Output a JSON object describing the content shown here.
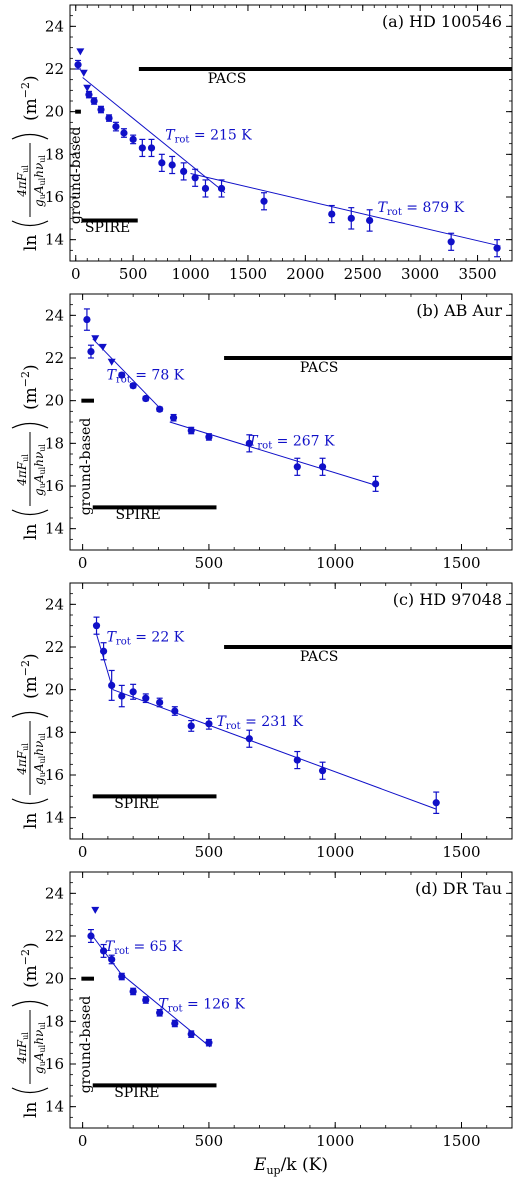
{
  "chart_data": [
    {
      "type": "scatter",
      "title": "(a) HD 100546",
      "xlim": [
        -50,
        3800
      ],
      "ylim": [
        13,
        25
      ],
      "xticks": [
        0,
        500,
        1000,
        1500,
        2000,
        2500,
        3000,
        3500
      ],
      "yticks": [
        14,
        16,
        18,
        20,
        22,
        24
      ],
      "detections": [
        {
          "x": 20,
          "y": 22.2,
          "yerr": 0.2
        },
        {
          "x": 115,
          "y": 20.8,
          "yerr": 0.15
        },
        {
          "x": 160,
          "y": 20.5,
          "yerr": 0.15
        },
        {
          "x": 220,
          "y": 20.1,
          "yerr": 0.15
        },
        {
          "x": 290,
          "y": 19.7,
          "yerr": 0.15
        },
        {
          "x": 350,
          "y": 19.3,
          "yerr": 0.2
        },
        {
          "x": 420,
          "y": 19.0,
          "yerr": 0.2
        },
        {
          "x": 500,
          "y": 18.7,
          "yerr": 0.2
        },
        {
          "x": 580,
          "y": 18.3,
          "yerr": 0.4
        },
        {
          "x": 660,
          "y": 18.3,
          "yerr": 0.4
        },
        {
          "x": 750,
          "y": 17.6,
          "yerr": 0.4
        },
        {
          "x": 840,
          "y": 17.5,
          "yerr": 0.4
        },
        {
          "x": 940,
          "y": 17.2,
          "yerr": 0.4
        },
        {
          "x": 1040,
          "y": 16.9,
          "yerr": 0.4
        },
        {
          "x": 1130,
          "y": 16.4,
          "yerr": 0.4
        },
        {
          "x": 1270,
          "y": 16.4,
          "yerr": 0.4
        },
        {
          "x": 1640,
          "y": 15.8,
          "yerr": 0.4
        },
        {
          "x": 2230,
          "y": 15.2,
          "yerr": 0.4
        },
        {
          "x": 2400,
          "y": 15.0,
          "yerr": 0.5
        },
        {
          "x": 2560,
          "y": 14.9,
          "yerr": 0.5
        },
        {
          "x": 3270,
          "y": 13.9,
          "yerr": 0.4
        },
        {
          "x": 3670,
          "y": 13.6,
          "yerr": 0.4
        }
      ],
      "upper_limits": [
        {
          "x": 40,
          "y": 22.8
        },
        {
          "x": 70,
          "y": 21.8
        },
        {
          "x": 100,
          "y": 21.1
        }
      ],
      "fits": [
        {
          "label_main": "T",
          "label_sub": "rot",
          "label_rest": " = 215 K",
          "x0": 60,
          "y0": 21.6,
          "x1": 1300,
          "y1": 16.2,
          "lx": 780,
          "ly": 18.7
        },
        {
          "label_main": "T",
          "label_sub": "rot",
          "label_rest": " = 879 K",
          "x0": 1000,
          "y0": 17.1,
          "x1": 3700,
          "y1": 13.7,
          "lx": 2630,
          "ly": 15.3
        }
      ],
      "bands": [
        {
          "label": "PACS",
          "x0": 550,
          "x1": 3800,
          "y": 22.0,
          "lx": 1150,
          "ly": 21.35
        },
        {
          "label": "SPIRE",
          "x0": 50,
          "x1": 540,
          "y": 14.9,
          "lx": 80,
          "ly": 14.35
        },
        {
          "label": "ground-based",
          "x0": -5,
          "x1": 45,
          "y": 20.0,
          "vertical": true,
          "lx": 10,
          "ly": 19.3
        }
      ]
    },
    {
      "type": "scatter",
      "title": "(b) AB Aur",
      "xlim": [
        -50,
        1700
      ],
      "ylim": [
        13,
        25
      ],
      "xticks": [
        0,
        500,
        1000,
        1500
      ],
      "yticks": [
        14,
        16,
        18,
        20,
        22,
        24
      ],
      "detections": [
        {
          "x": 17,
          "y": 23.8,
          "yerr": 0.5
        },
        {
          "x": 33,
          "y": 22.3,
          "yerr": 0.3
        },
        {
          "x": 155,
          "y": 21.2,
          "yerr": 0.1
        },
        {
          "x": 200,
          "y": 20.7,
          "yerr": 0.1
        },
        {
          "x": 250,
          "y": 20.1,
          "yerr": 0.1
        },
        {
          "x": 305,
          "y": 19.6,
          "yerr": 0.1
        },
        {
          "x": 360,
          "y": 19.2,
          "yerr": 0.15
        },
        {
          "x": 430,
          "y": 18.6,
          "yerr": 0.15
        },
        {
          "x": 500,
          "y": 18.3,
          "yerr": 0.15
        },
        {
          "x": 660,
          "y": 18.0,
          "yerr": 0.4
        },
        {
          "x": 850,
          "y": 16.9,
          "yerr": 0.4
        },
        {
          "x": 950,
          "y": 16.9,
          "yerr": 0.4
        },
        {
          "x": 1160,
          "y": 16.1,
          "yerr": 0.35
        }
      ],
      "upper_limits": [
        {
          "x": 50,
          "y": 22.9
        },
        {
          "x": 80,
          "y": 22.5
        },
        {
          "x": 115,
          "y": 21.8
        }
      ],
      "fits": [
        {
          "label_main": "T",
          "label_sub": "rot",
          "label_rest": " = 78 K",
          "x0": 40,
          "y0": 22.9,
          "x1": 310,
          "y1": 19.6,
          "lx": 95,
          "ly": 21.0
        },
        {
          "label_main": "T",
          "label_sub": "rot",
          "label_rest": " = 267 K",
          "x0": 345,
          "y0": 19.0,
          "x1": 1170,
          "y1": 16.0,
          "lx": 655,
          "ly": 17.9
        }
      ],
      "bands": [
        {
          "label": "PACS",
          "x0": 560,
          "x1": 1700,
          "y": 22.0,
          "lx": 860,
          "ly": 21.35
        },
        {
          "label": "SPIRE",
          "x0": 40,
          "x1": 530,
          "y": 15.0,
          "lx": 130,
          "ly": 14.45
        },
        {
          "label": "ground-based",
          "x0": -5,
          "x1": 45,
          "y": 20.0,
          "vertical": true,
          "lx": 18,
          "ly": 19.2
        }
      ]
    },
    {
      "type": "scatter",
      "title": "(c) HD 97048",
      "xlim": [
        -50,
        1700
      ],
      "ylim": [
        13,
        25
      ],
      "xticks": [
        0,
        500,
        1000,
        1500
      ],
      "yticks": [
        14,
        16,
        18,
        20,
        22,
        24
      ],
      "detections": [
        {
          "x": 55,
          "y": 23.0,
          "yerr": 0.4
        },
        {
          "x": 83,
          "y": 21.8,
          "yerr": 0.4
        },
        {
          "x": 115,
          "y": 20.2,
          "yerr": 0.7
        },
        {
          "x": 155,
          "y": 19.7,
          "yerr": 0.5
        },
        {
          "x": 200,
          "y": 19.9,
          "yerr": 0.35
        },
        {
          "x": 250,
          "y": 19.6,
          "yerr": 0.2
        },
        {
          "x": 305,
          "y": 19.4,
          "yerr": 0.2
        },
        {
          "x": 365,
          "y": 19.0,
          "yerr": 0.2
        },
        {
          "x": 430,
          "y": 18.3,
          "yerr": 0.25
        },
        {
          "x": 500,
          "y": 18.4,
          "yerr": 0.25
        },
        {
          "x": 660,
          "y": 17.7,
          "yerr": 0.4
        },
        {
          "x": 850,
          "y": 16.7,
          "yerr": 0.4
        },
        {
          "x": 950,
          "y": 16.2,
          "yerr": 0.4
        },
        {
          "x": 1400,
          "y": 14.7,
          "yerr": 0.5
        }
      ],
      "upper_limits": [],
      "fits": [
        {
          "label_main": "T",
          "label_sub": "rot",
          "label_rest": " = 22 K",
          "x0": 55,
          "y0": 22.6,
          "x1": 120,
          "y1": 20.0,
          "lx": 95,
          "ly": 22.25
        },
        {
          "label_main": "T",
          "label_sub": "rot",
          "label_rest": " = 231 K",
          "x0": 120,
          "y0": 20.0,
          "x1": 1400,
          "y1": 14.4,
          "lx": 530,
          "ly": 18.3
        }
      ],
      "bands": [
        {
          "label": "PACS",
          "x0": 560,
          "x1": 1700,
          "y": 22.0,
          "lx": 860,
          "ly": 21.35
        },
        {
          "label": "SPIRE",
          "x0": 40,
          "x1": 530,
          "y": 15.0,
          "lx": 125,
          "ly": 14.45
        }
      ]
    },
    {
      "type": "scatter",
      "title": "(d) DR Tau",
      "xlim": [
        -50,
        1700
      ],
      "ylim": [
        13,
        25
      ],
      "xticks": [
        0,
        500,
        1000,
        1500
      ],
      "yticks": [
        14,
        16,
        18,
        20,
        22,
        24
      ],
      "detections": [
        {
          "x": 33,
          "y": 22.0,
          "yerr": 0.3
        },
        {
          "x": 83,
          "y": 21.3,
          "yerr": 0.3
        },
        {
          "x": 115,
          "y": 20.9,
          "yerr": 0.2
        },
        {
          "x": 155,
          "y": 20.1,
          "yerr": 0.15
        },
        {
          "x": 200,
          "y": 19.4,
          "yerr": 0.15
        },
        {
          "x": 250,
          "y": 19.0,
          "yerr": 0.15
        },
        {
          "x": 305,
          "y": 18.4,
          "yerr": 0.15
        },
        {
          "x": 365,
          "y": 17.9,
          "yerr": 0.15
        },
        {
          "x": 430,
          "y": 17.4,
          "yerr": 0.15
        },
        {
          "x": 500,
          "y": 17.0,
          "yerr": 0.15
        }
      ],
      "upper_limits": [
        {
          "x": 50,
          "y": 23.2
        }
      ],
      "fits": [
        {
          "label_main": "T",
          "label_sub": "rot",
          "label_rest": " = 65 K",
          "x0": 33,
          "y0": 22.1,
          "x1": 160,
          "y1": 20.1,
          "lx": 88,
          "ly": 21.3
        },
        {
          "label_main": "T",
          "label_sub": "rot",
          "label_rest": " = 126 K",
          "x0": 155,
          "y0": 20.2,
          "x1": 505,
          "y1": 16.8,
          "lx": 300,
          "ly": 18.6
        }
      ],
      "bands": [
        {
          "label": "SPIRE",
          "x0": 40,
          "x1": 530,
          "y": 15.0,
          "lx": 125,
          "ly": 14.45
        },
        {
          "label": "ground-based",
          "x0": -5,
          "x1": 45,
          "y": 20.0,
          "vertical": true,
          "lx": 18,
          "ly": 19.2
        }
      ]
    }
  ],
  "axes": {
    "xlabel_main": "E",
    "xlabel_sub": "up",
    "xlabel_rest": "/k (K)",
    "ylabel_prefix": "ln",
    "ylabel_num_a": "4πF",
    "ylabel_num_sub": "ul",
    "ylabel_den": "g",
    "ylabel_den_sub1": "u",
    "ylabel_den_a": "A",
    "ylabel_den_sub2": "ul",
    "ylabel_den_b": "hν",
    "ylabel_den_sub3": "ul",
    "ylabel_unit": "(m",
    "ylabel_unit_exp": "−2",
    "ylabel_unit_close": ")"
  },
  "colors": {
    "data": "#1010c8",
    "bands": "#000000",
    "axes": "#000000"
  }
}
